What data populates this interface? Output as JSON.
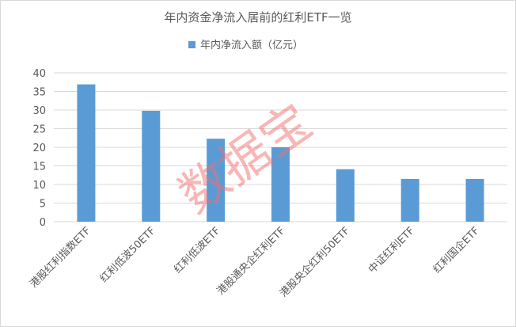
{
  "chart_data": {
    "type": "bar",
    "title": "年内资金净流入居前的红利ETF一览",
    "categories": [
      "港股红利指数ETF",
      "红利低波50ETF",
      "红利低波ETF",
      "港股通央企红利ETF",
      "港股央企红利50ETF",
      "中证红利ETF",
      "红利国企ETF"
    ],
    "series": [
      {
        "name": "年内净流入额（亿元）",
        "values": [
          36.9,
          29.8,
          22.3,
          20.0,
          14.1,
          11.5,
          11.5
        ],
        "color": "#5b9bd5"
      }
    ],
    "ylim": [
      0,
      40
    ],
    "yticks": [
      0,
      5,
      10,
      15,
      20,
      25,
      30,
      35,
      40
    ],
    "grid": true,
    "legend": "top",
    "xlabel": "",
    "ylabel": ""
  },
  "watermark": "数据宝"
}
